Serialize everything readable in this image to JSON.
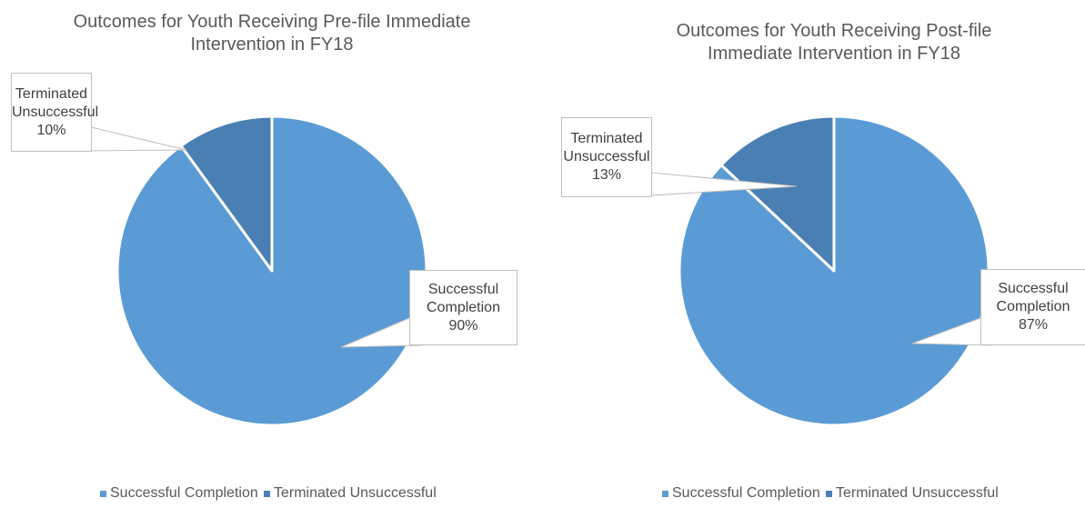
{
  "chart_data": [
    {
      "type": "pie",
      "title": "Outcomes for Youth Receiving Pre-file Immediate Intervention in FY18",
      "categories": [
        "Successful Completion",
        "Terminated Unsuccessful"
      ],
      "values": [
        90,
        10
      ],
      "value_labels": [
        "90%",
        "10%"
      ],
      "colors": [
        "#5b9bd5",
        "#4a7fb3"
      ]
    },
    {
      "type": "pie",
      "title": "Outcomes for Youth Receiving Post-file Immediate Intervention in FY18",
      "categories": [
        "Successful Completion",
        "Terminated Unsuccessful"
      ],
      "values": [
        87,
        13
      ],
      "value_labels": [
        "87%",
        "13%"
      ],
      "colors": [
        "#5b9bd5",
        "#4a7fb3"
      ]
    }
  ]
}
